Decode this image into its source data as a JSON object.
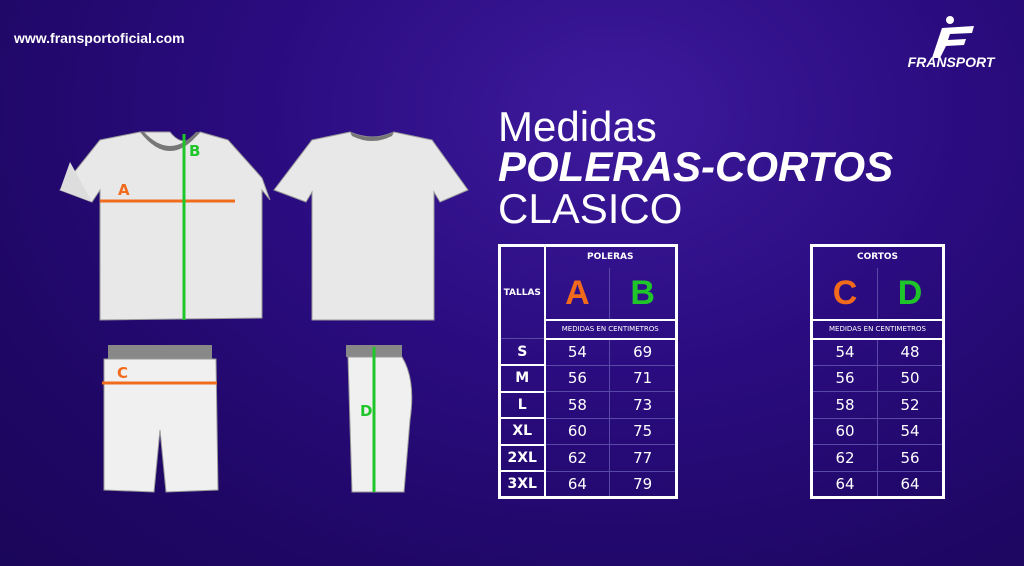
{
  "website": "www.fransportoficial.com",
  "brand": "FRANSPORT",
  "title": {
    "line1": "Medidas",
    "line2": "POLERAS-CORTOS",
    "line3": "CLASICO"
  },
  "colors": {
    "orange": "#f26a1b",
    "green": "#1fc62a",
    "background": "#2b0c80"
  },
  "garment_labels": {
    "a": "A",
    "b": "B",
    "c": "C",
    "d": "D"
  },
  "poleras": {
    "title": "POLERAS",
    "size_header": "TALLAS",
    "col1": "A",
    "col2": "B",
    "units": "MEDIDAS EN CENTIMETROS",
    "rows": [
      {
        "size": "S",
        "a": "54",
        "b": "69"
      },
      {
        "size": "M",
        "a": "56",
        "b": "71"
      },
      {
        "size": "L",
        "a": "58",
        "b": "73"
      },
      {
        "size": "XL",
        "a": "60",
        "b": "75"
      },
      {
        "size": "2XL",
        "a": "62",
        "b": "77"
      },
      {
        "size": "3XL",
        "a": "64",
        "b": "79"
      }
    ]
  },
  "cortos": {
    "title": "CORTOS",
    "col1": "C",
    "col2": "D",
    "units": "MEDIDAS EN CENTIMETROS",
    "rows": [
      {
        "c": "54",
        "d": "48"
      },
      {
        "c": "56",
        "d": "50"
      },
      {
        "c": "58",
        "d": "52"
      },
      {
        "c": "60",
        "d": "54"
      },
      {
        "c": "62",
        "d": "56"
      },
      {
        "c": "64",
        "d": "64"
      }
    ]
  }
}
